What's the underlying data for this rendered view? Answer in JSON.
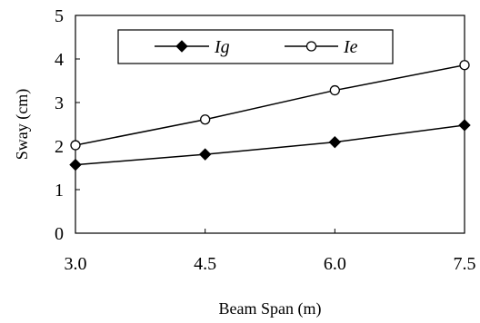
{
  "chart_data": {
    "type": "line",
    "xlabel": "Beam Span (m)",
    "ylabel": "Sway (cm)",
    "x": [
      3.0,
      4.5,
      6.0,
      7.5
    ],
    "x_tick_labels": [
      "3.0",
      "4.5",
      "6.0",
      "7.5"
    ],
    "y_tick_labels": [
      "0",
      "1",
      "2",
      "3",
      "4",
      "5"
    ],
    "xlim": [
      3.0,
      7.5
    ],
    "ylim": [
      0,
      5
    ],
    "grid": false,
    "legend_position": "top-center",
    "series": [
      {
        "name": "Ig",
        "values": [
          1.57,
          1.81,
          2.09,
          2.48
        ],
        "marker": "filled-diamond",
        "color": "#000000"
      },
      {
        "name": "Ie",
        "values": [
          2.02,
          2.61,
          3.28,
          3.86
        ],
        "marker": "open-circle",
        "color": "#000000"
      }
    ]
  }
}
